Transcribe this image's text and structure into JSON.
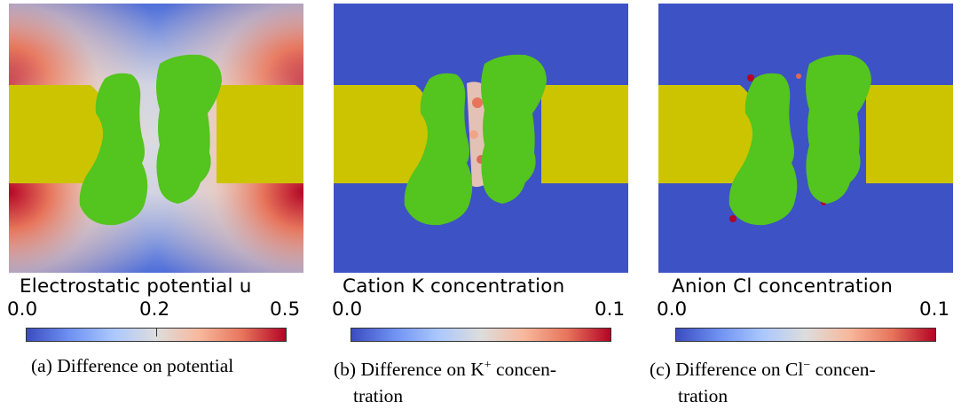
{
  "panels": [
    {
      "colorbar_title": "Electrostatic potential u",
      "ticks": [
        "0.0",
        "0.2",
        "0.5"
      ],
      "caption_label": "(a)",
      "caption_text": "Difference on potential"
    },
    {
      "colorbar_title": "Cation K concentration",
      "ticks": [
        "0.0",
        "0.1"
      ],
      "caption_label": "(b)",
      "caption_text_1": "Difference on K",
      "caption_sup": "+",
      "caption_text_2": "concen-",
      "caption_line2": "tration"
    },
    {
      "colorbar_title": "Anion Cl concentration",
      "ticks": [
        "0.0",
        "0.1"
      ],
      "caption_label": "(c)",
      "caption_text_1": "Difference on Cl",
      "caption_sup": "−",
      "caption_text_2": "concen-",
      "caption_line2": "tration"
    }
  ],
  "colors": {
    "membrane": "#cdc400",
    "protein": "#54c41e",
    "low": "#3b4cc0",
    "mid": "#dddddd",
    "high": "#b40426"
  }
}
